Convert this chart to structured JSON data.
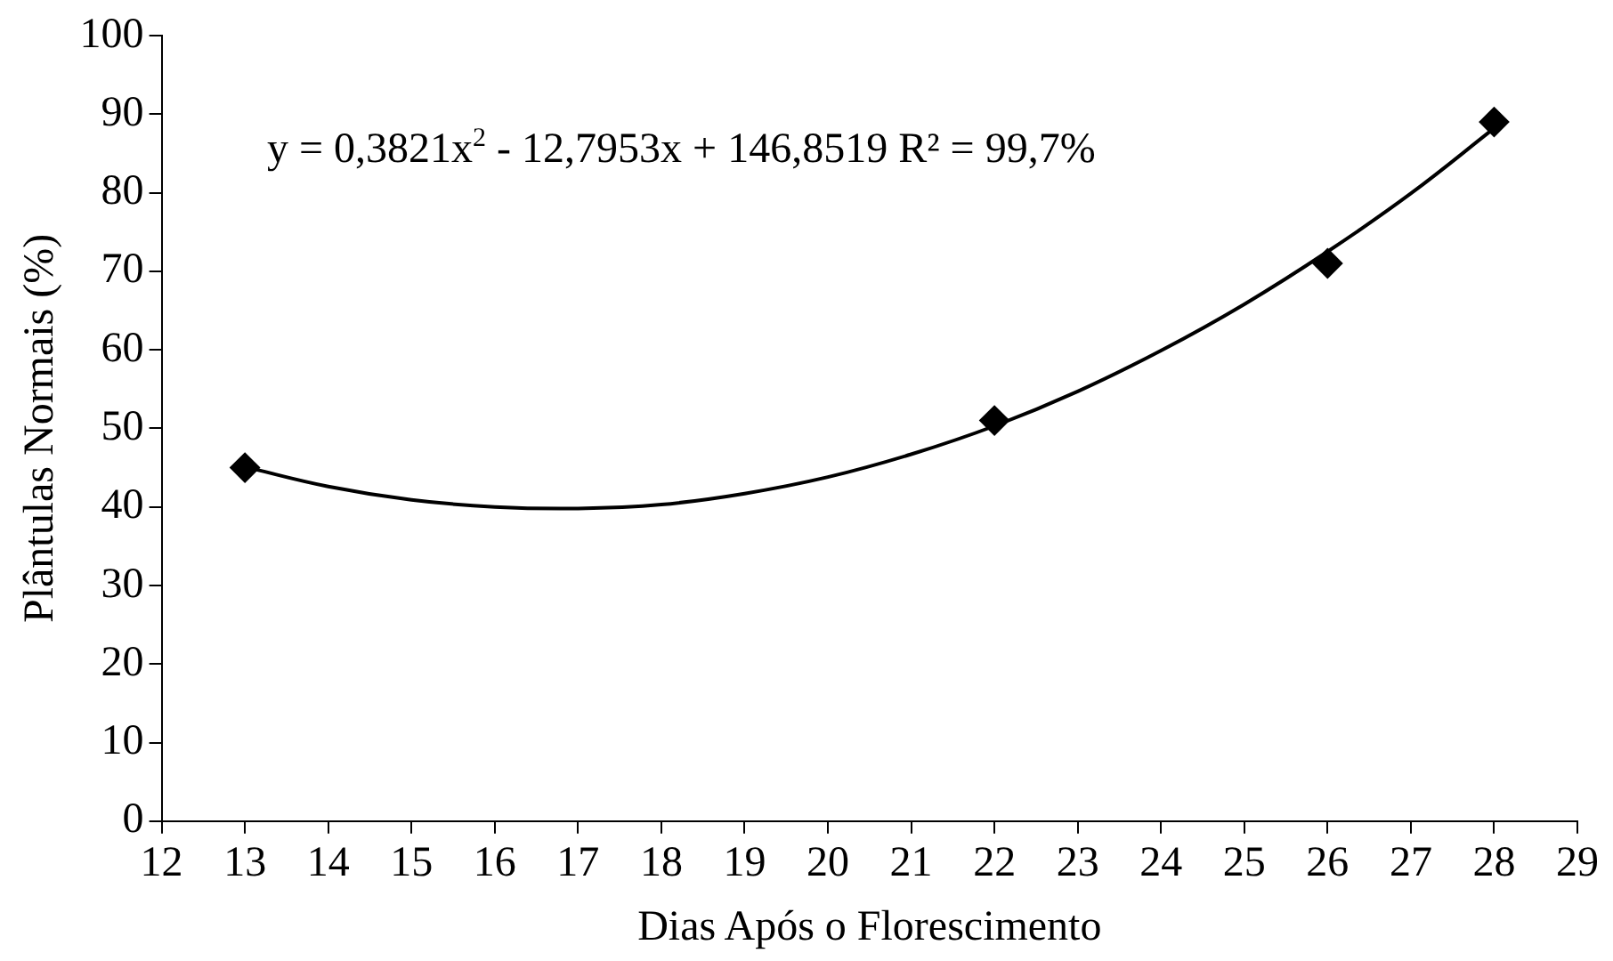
{
  "chart_data": {
    "type": "scatter",
    "xlabel": "Dias Após o Florescimento",
    "ylabel": "Plântulas Normais (%)",
    "x": [
      13,
      22,
      26,
      28
    ],
    "series": [
      {
        "color": "#000000",
        "marker": "diamond",
        "values": [
          45,
          51,
          71,
          89
        ]
      },
      {
        "type": "line",
        "color": "#000000",
        "marker": "none",
        "line_style": "solid",
        "x": [
          13,
          14,
          15,
          16,
          17,
          18,
          19,
          20,
          21,
          22,
          23,
          24,
          25,
          26,
          27,
          28
        ],
        "values": [
          45.1,
          42.6,
          40.9,
          40.0,
          39.8,
          40.3,
          41.7,
          43.8,
          46.7,
          50.3,
          54.7,
          59.9,
          65.8,
          72.5,
          79.9,
          88.2
        ]
      }
    ],
    "xlim": [
      12,
      29
    ],
    "xticks": [
      12,
      13,
      14,
      15,
      16,
      17,
      18,
      19,
      20,
      21,
      22,
      23,
      24,
      25,
      26,
      27,
      28,
      29
    ],
    "ylim": [
      0,
      100
    ],
    "yticks": [
      0,
      10,
      20,
      30,
      40,
      50,
      60,
      70,
      80,
      90,
      100
    ],
    "grid": false,
    "legend": false,
    "annotations": [
      "y = 0,3821x$^{2}$ - 12,7953x + 146,8519  R² = 99,7%"
    ]
  }
}
